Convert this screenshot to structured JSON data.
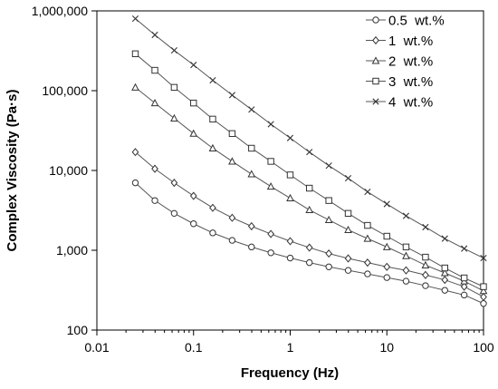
{
  "chart_data": {
    "type": "line",
    "title": "",
    "xlabel": "Frequency (Hz)",
    "ylabel": "Complex Viscosity (Pa·s)",
    "xscale": "log",
    "yscale": "log",
    "xlim": [
      0.01,
      100
    ],
    "ylim": [
      100,
      1000000
    ],
    "xticks": [
      0.01,
      0.1,
      1,
      10,
      100
    ],
    "xtick_labels": [
      "0.01",
      "0.1",
      "1",
      "10",
      "100"
    ],
    "yticks": [
      100,
      1000,
      10000,
      100000,
      1000000
    ],
    "ytick_labels": [
      "100",
      "1,000",
      "10,000",
      "100,000",
      "1,000,000"
    ],
    "grid": false,
    "legend_position": "top-right",
    "x": [
      0.025,
      0.0398,
      0.0631,
      0.1,
      0.158,
      0.251,
      0.398,
      0.631,
      1,
      1.58,
      2.51,
      3.98,
      6.31,
      10,
      15.8,
      25.1,
      39.8,
      63.1,
      100
    ],
    "series": [
      {
        "name": "0.5  wt.%",
        "marker": "circle",
        "values": [
          7000,
          4200,
          2900,
          2150,
          1650,
          1330,
          1100,
          930,
          800,
          700,
          620,
          560,
          505,
          455,
          410,
          360,
          315,
          275,
          215
        ]
      },
      {
        "name": "1  wt.%",
        "marker": "diamond",
        "values": [
          17000,
          10500,
          7000,
          4800,
          3400,
          2550,
          2000,
          1600,
          1300,
          1080,
          910,
          790,
          700,
          620,
          560,
          490,
          425,
          350,
          260
        ]
      },
      {
        "name": "2  wt.%",
        "marker": "triangle",
        "values": [
          110000,
          70000,
          45000,
          29000,
          19000,
          13000,
          9000,
          6300,
          4500,
          3200,
          2400,
          1800,
          1400,
          1100,
          850,
          650,
          520,
          410,
          310
        ]
      },
      {
        "name": "3  wt.%",
        "marker": "square",
        "values": [
          290000,
          180000,
          110000,
          70000,
          44000,
          29000,
          19000,
          13000,
          8800,
          6000,
          4200,
          2900,
          2050,
          1500,
          1100,
          820,
          600,
          450,
          350
        ]
      },
      {
        "name": "4  wt.%",
        "marker": "cross",
        "values": [
          800000,
          500000,
          320000,
          210000,
          135000,
          88000,
          58000,
          38000,
          25500,
          17000,
          11500,
          8000,
          5400,
          3800,
          2700,
          1950,
          1400,
          1050,
          800
        ]
      }
    ]
  }
}
